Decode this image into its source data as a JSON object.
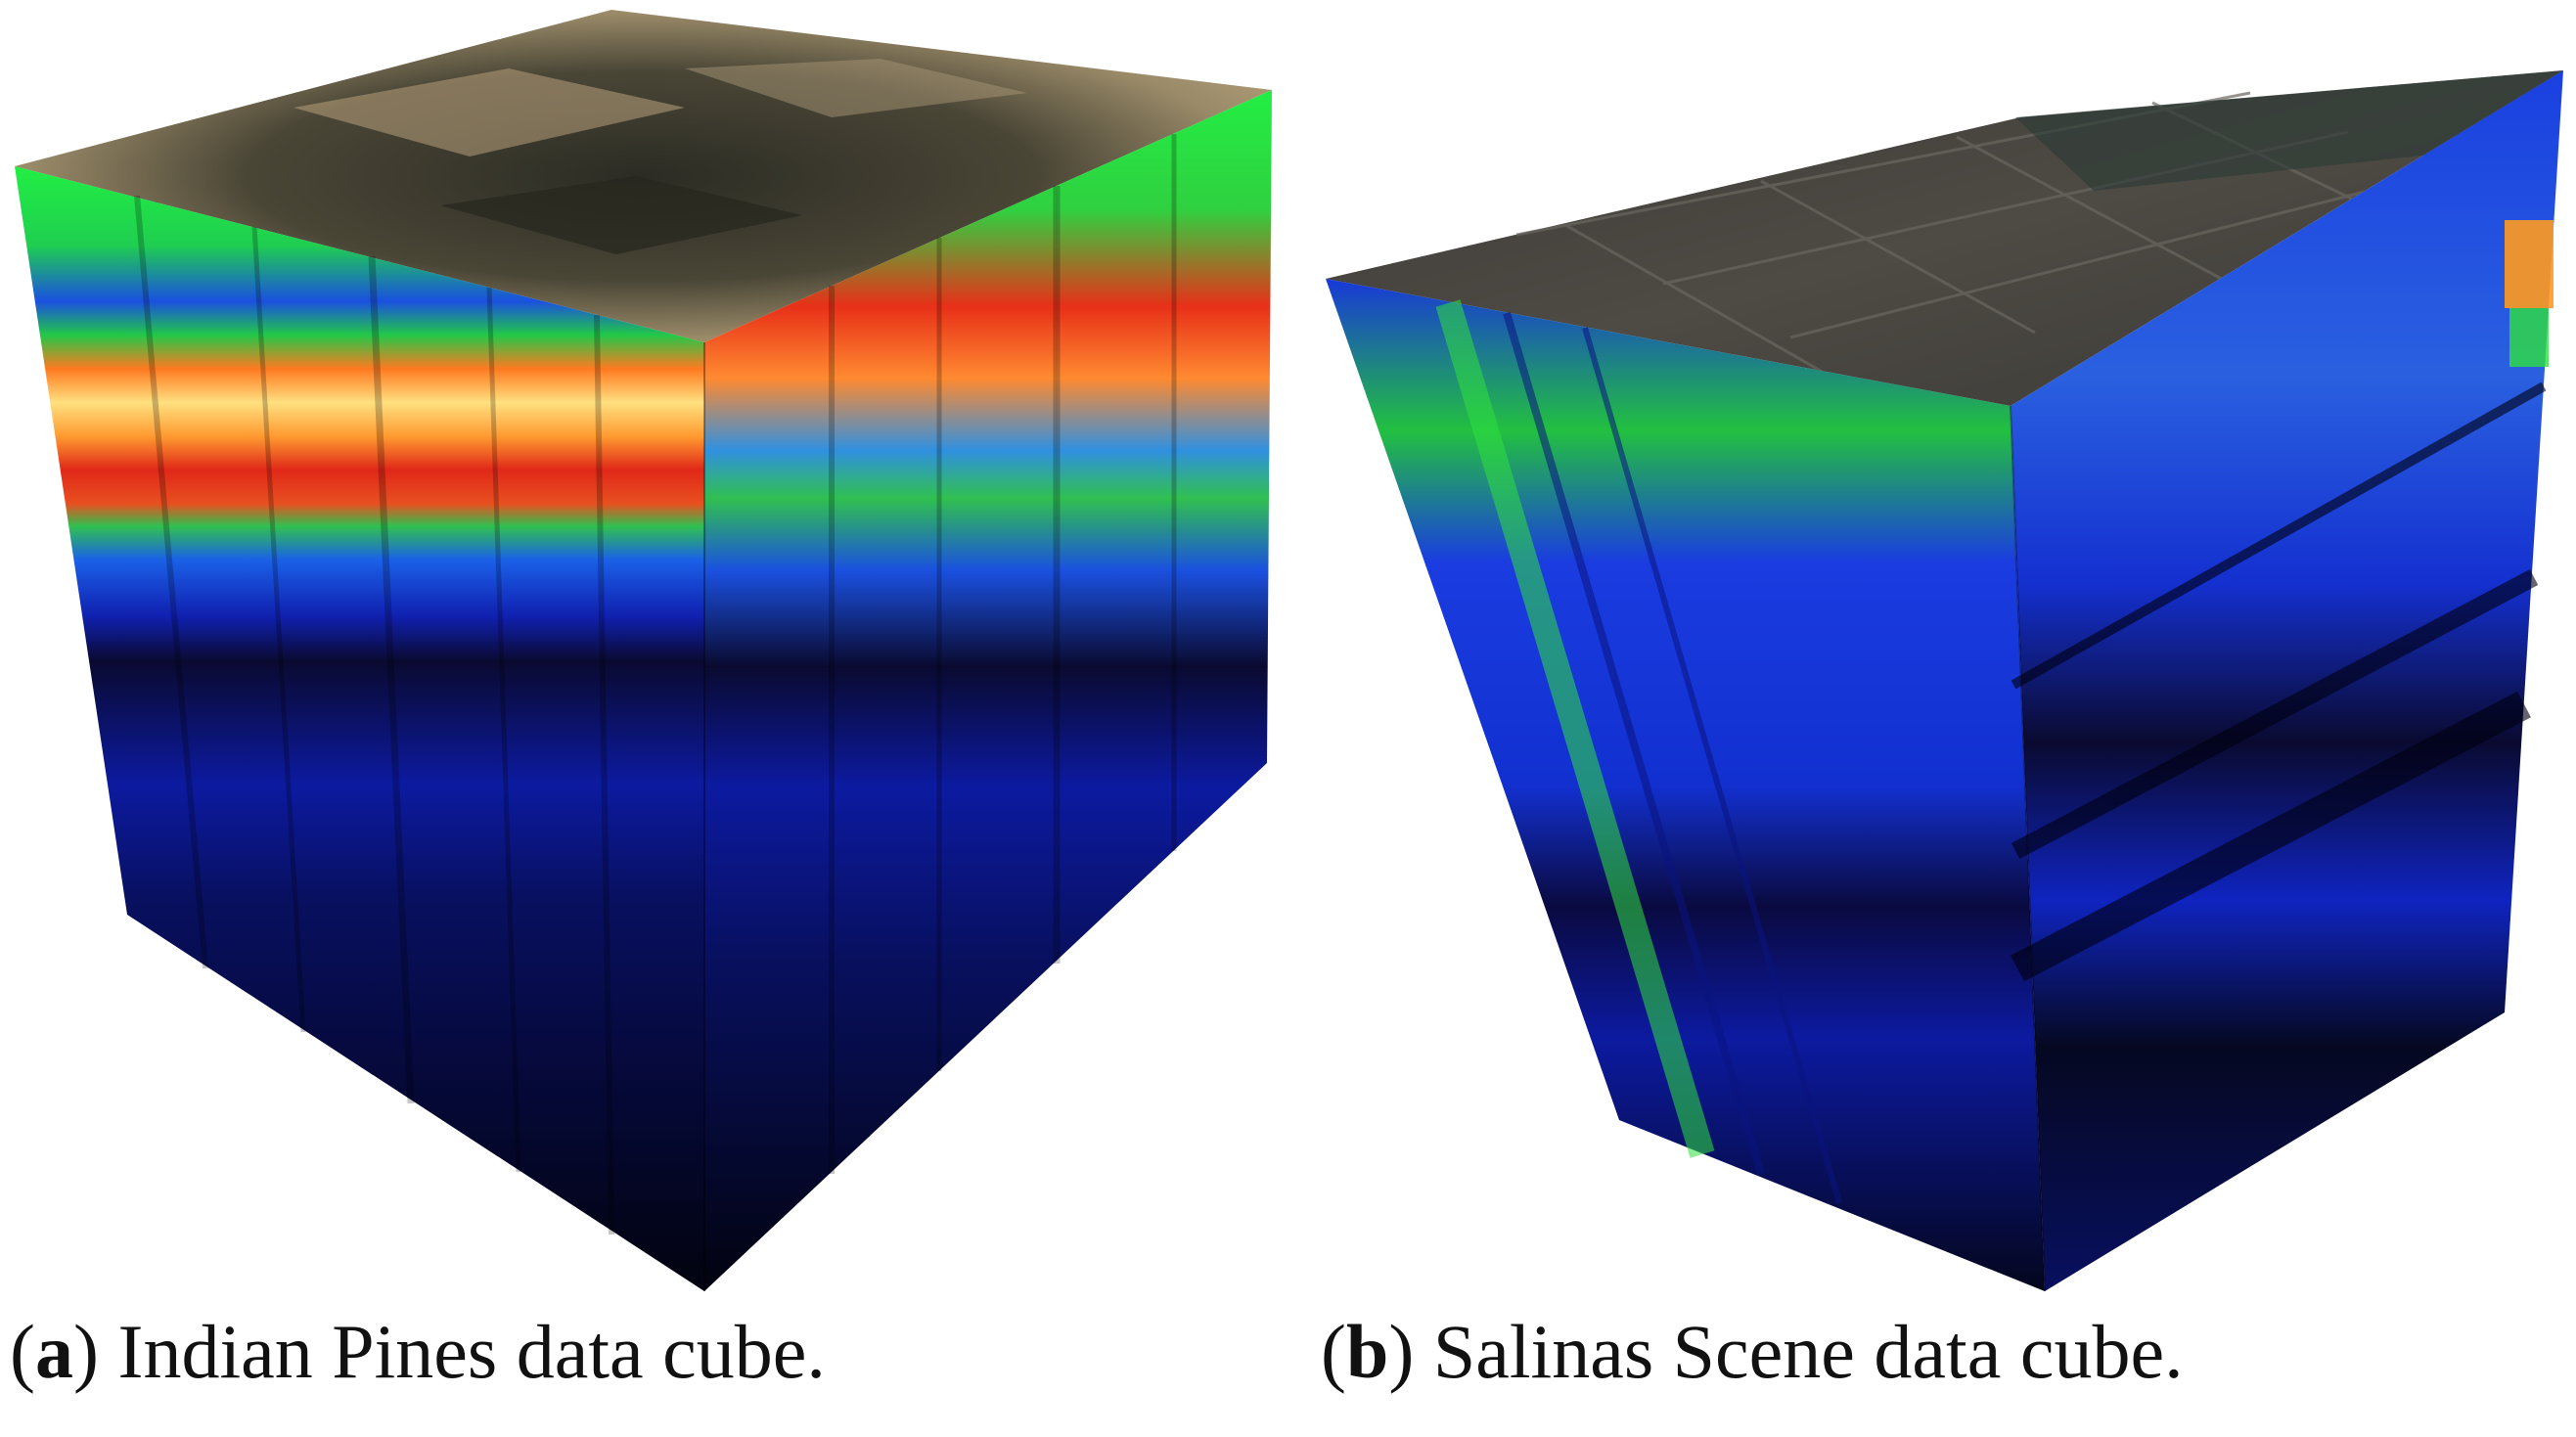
{
  "figure": {
    "panels": [
      {
        "id": "a",
        "tag_open": "(",
        "tag": "a",
        "tag_close": ")",
        "caption": " Indian Pines data cube.",
        "image_name": "indian-pines-data-cube"
      },
      {
        "id": "b",
        "tag_open": "(",
        "tag": "b",
        "tag_close": ")",
        "caption": " Salinas Scene data cube.",
        "image_name": "salinas-scene-data-cube"
      }
    ]
  },
  "colors": {
    "background": "#ffffff",
    "spectral_low": "#000010",
    "spectral_blue": "#1030e0",
    "spectral_green": "#30e040",
    "spectral_red": "#e83018",
    "spectral_yellow": "#fff0a0",
    "top_soil_dark": "#2a2a22",
    "top_soil_light": "#c8b08a",
    "top_salinas": "#4a4640"
  }
}
